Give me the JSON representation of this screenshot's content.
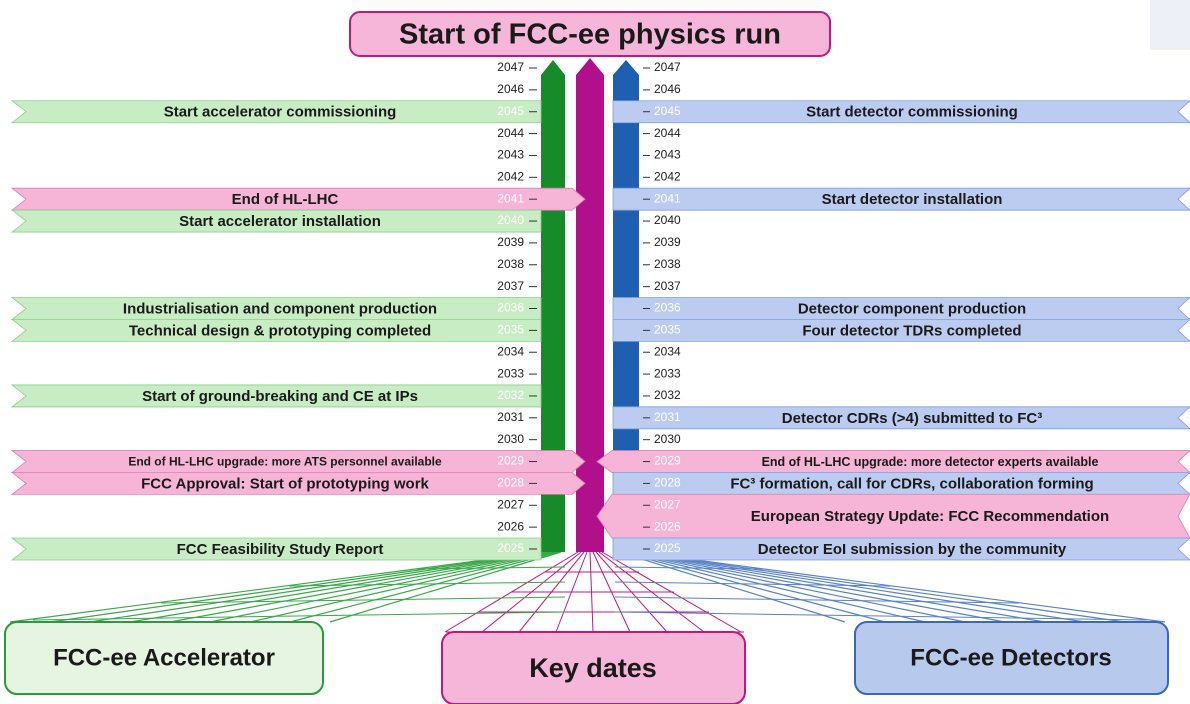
{
  "title": "Start of FCC-ee physics run",
  "years": [
    2047,
    2046,
    2045,
    2044,
    2043,
    2042,
    2041,
    2040,
    2039,
    2038,
    2037,
    2036,
    2035,
    2034,
    2033,
    2032,
    2031,
    2030,
    2029,
    2028,
    2027,
    2026,
    2025
  ],
  "left_events": [
    {
      "year": 2045,
      "label": "Start accelerator commissioning",
      "style": "green"
    },
    {
      "year": 2041,
      "label": "End of HL-LHC",
      "style": "pink"
    },
    {
      "year": 2040,
      "label": "Start accelerator installation",
      "style": "green"
    },
    {
      "year": 2036,
      "label": "Industrialisation and component production",
      "style": "green"
    },
    {
      "year": 2035,
      "label": "Technical design & prototyping completed",
      "style": "green"
    },
    {
      "year": 2032,
      "label": "Start of ground-breaking and CE at IPs",
      "style": "green"
    },
    {
      "year": 2029,
      "label": "End of HL-LHC upgrade: more ATS personnel available",
      "style": "pink",
      "size": "small"
    },
    {
      "year": 2028,
      "label": "FCC Approval: Start of prototyping work",
      "style": "pink"
    },
    {
      "year": 2025,
      "label": "FCC Feasibility Study Report",
      "style": "green"
    }
  ],
  "right_events": [
    {
      "year": 2045,
      "label": "Start detector commissioning",
      "style": "blue"
    },
    {
      "year": 2041,
      "label": "Start detector installation",
      "style": "blue"
    },
    {
      "year": 2036,
      "label": "Detector component production",
      "style": "blue"
    },
    {
      "year": 2035,
      "label": "Four detector TDRs completed",
      "style": "blue"
    },
    {
      "year": 2031,
      "label": "Detector CDRs (>4) submitted to FC³",
      "style": "blue"
    },
    {
      "year": 2029,
      "label": "End of HL-LHC upgrade: more detector experts available",
      "style": "pink",
      "size": "small"
    },
    {
      "year": 2028,
      "label": "FC³ formation, call for CDRs, collaboration forming",
      "style": "blue"
    },
    {
      "year": 2027,
      "end_year": 2026,
      "label": "European Strategy Update: FCC Recommendation",
      "style": "pink"
    },
    {
      "year": 2025,
      "label": "Detector EoI submission by the community",
      "style": "blue"
    }
  ],
  "bottom": {
    "accelerator": "FCC-ee Accelerator",
    "key_dates": "Key dates",
    "detectors": "FCC-ee Detectors"
  }
}
